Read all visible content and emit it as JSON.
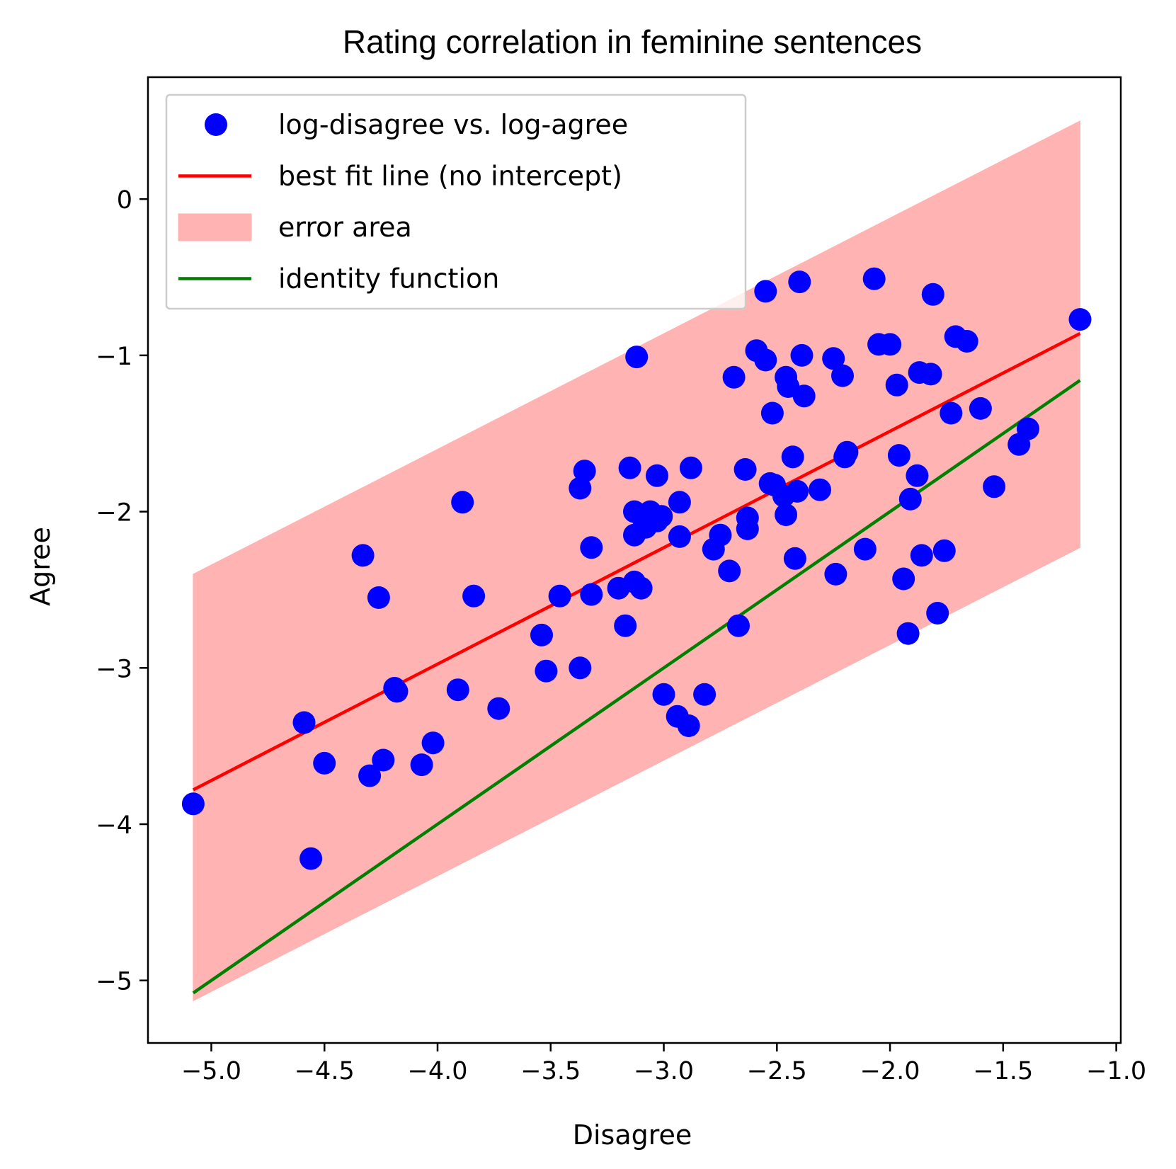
{
  "chart_data": {
    "type": "scatter",
    "title": "Rating correlation in feminine sentences",
    "xlabel": "Disagree",
    "ylabel": "Agree",
    "xlim": [
      -5.28,
      -0.98
    ],
    "ylim": [
      -5.4,
      0.78
    ],
    "xticks": [
      -5.0,
      -4.5,
      -4.0,
      -3.5,
      -3.0,
      -2.5,
      -2.0,
      -1.5,
      -1.0
    ],
    "xtick_labels": [
      "−5.0",
      "−4.5",
      "−4.0",
      "−3.5",
      "−3.0",
      "−2.5",
      "−2.0",
      "−1.5",
      "−1.0"
    ],
    "yticks": [
      0,
      -1,
      -2,
      -3,
      -4,
      -5
    ],
    "ytick_labels": [
      "0",
      "−1",
      "−2",
      "−3",
      "−4",
      "−5"
    ],
    "legend": {
      "location": "upper-left",
      "entries": [
        {
          "label": "log-disagree vs. log-agree",
          "kind": "marker",
          "color": "#0000ff"
        },
        {
          "label": "best fit line (no intercept)",
          "kind": "line",
          "color": "#ff0000"
        },
        {
          "label": "error area",
          "kind": "patch",
          "color": "#ffb3b3"
        },
        {
          "label": "identity function",
          "kind": "line",
          "color": "#008000"
        }
      ]
    },
    "series": [
      {
        "name": "log-disagree vs. log-agree",
        "kind": "scatter",
        "color": "#0000ff",
        "points": [
          [
            -5.08,
            -3.87
          ],
          [
            -4.59,
            -3.35
          ],
          [
            -4.56,
            -4.22
          ],
          [
            -4.5,
            -3.61
          ],
          [
            -4.33,
            -2.28
          ],
          [
            -4.3,
            -3.69
          ],
          [
            -4.26,
            -2.55
          ],
          [
            -4.24,
            -3.59
          ],
          [
            -4.19,
            -3.13
          ],
          [
            -4.18,
            -3.15
          ],
          [
            -4.07,
            -3.62
          ],
          [
            -4.02,
            -3.48
          ],
          [
            -3.91,
            -3.14
          ],
          [
            -3.89,
            -1.94
          ],
          [
            -3.84,
            -2.54
          ],
          [
            -3.73,
            -3.26
          ],
          [
            -3.54,
            -2.79
          ],
          [
            -3.52,
            -3.02
          ],
          [
            -3.46,
            -2.54
          ],
          [
            -3.37,
            -3.0
          ],
          [
            -3.37,
            -1.85
          ],
          [
            -3.35,
            -1.74
          ],
          [
            -3.32,
            -2.23
          ],
          [
            -3.32,
            -2.53
          ],
          [
            -3.2,
            -2.49
          ],
          [
            -3.17,
            -2.73
          ],
          [
            -3.15,
            -1.72
          ],
          [
            -3.13,
            -2.45
          ],
          [
            -3.13,
            -2.0
          ],
          [
            -3.13,
            -2.15
          ],
          [
            -3.12,
            -1.01
          ],
          [
            -3.1,
            -2.49
          ],
          [
            -3.09,
            -2.05
          ],
          [
            -3.08,
            -2.1
          ],
          [
            -3.06,
            -2.0
          ],
          [
            -3.03,
            -2.06
          ],
          [
            -3.03,
            -1.77
          ],
          [
            -3.01,
            -2.03
          ],
          [
            -3.0,
            -3.17
          ],
          [
            -2.94,
            -3.31
          ],
          [
            -2.93,
            -2.16
          ],
          [
            -2.93,
            -1.94
          ],
          [
            -2.89,
            -3.37
          ],
          [
            -2.88,
            -1.72
          ],
          [
            -2.82,
            -3.17
          ],
          [
            -2.78,
            -2.24
          ],
          [
            -2.75,
            -2.15
          ],
          [
            -2.71,
            -2.38
          ],
          [
            -2.69,
            -1.14
          ],
          [
            -2.67,
            -2.73
          ],
          [
            -2.64,
            -1.73
          ],
          [
            -2.63,
            -2.04
          ],
          [
            -2.63,
            -2.11
          ],
          [
            -2.59,
            -0.97
          ],
          [
            -2.55,
            -1.03
          ],
          [
            -2.55,
            -0.59
          ],
          [
            -2.53,
            -1.82
          ],
          [
            -2.52,
            -1.37
          ],
          [
            -2.51,
            -1.83
          ],
          [
            -2.47,
            -1.9
          ],
          [
            -2.46,
            -2.02
          ],
          [
            -2.46,
            -1.14
          ],
          [
            -2.45,
            -1.2
          ],
          [
            -2.43,
            -1.65
          ],
          [
            -2.42,
            -2.3
          ],
          [
            -2.41,
            -1.87
          ],
          [
            -2.4,
            -0.53
          ],
          [
            -2.39,
            -1.0
          ],
          [
            -2.38,
            -1.26
          ],
          [
            -2.31,
            -1.86
          ],
          [
            -2.25,
            -1.02
          ],
          [
            -2.24,
            -2.4
          ],
          [
            -2.21,
            -1.13
          ],
          [
            -2.2,
            -1.65
          ],
          [
            -2.19,
            -1.62
          ],
          [
            -2.11,
            -2.24
          ],
          [
            -2.07,
            -0.51
          ],
          [
            -2.05,
            -0.93
          ],
          [
            -2.0,
            -0.93
          ],
          [
            -1.97,
            -1.19
          ],
          [
            -1.96,
            -1.64
          ],
          [
            -1.94,
            -2.43
          ],
          [
            -1.92,
            -2.78
          ],
          [
            -1.91,
            -1.92
          ],
          [
            -1.88,
            -1.77
          ],
          [
            -1.87,
            -1.11
          ],
          [
            -1.86,
            -2.28
          ],
          [
            -1.82,
            -1.12
          ],
          [
            -1.81,
            -0.61
          ],
          [
            -1.79,
            -2.65
          ],
          [
            -1.76,
            -2.25
          ],
          [
            -1.73,
            -1.37
          ],
          [
            -1.71,
            -0.88
          ],
          [
            -1.66,
            -0.91
          ],
          [
            -1.6,
            -1.34
          ],
          [
            -1.54,
            -1.84
          ],
          [
            -1.43,
            -1.57
          ],
          [
            -1.39,
            -1.47
          ],
          [
            -1.16,
            -0.77
          ]
        ]
      },
      {
        "name": "best fit line (no intercept)",
        "kind": "line",
        "color": "#ff0000",
        "x": [
          -5.08,
          -1.16
        ],
        "y": [
          -3.78,
          -0.86
        ]
      },
      {
        "name": "error area",
        "kind": "band",
        "color": "#ffb3b3",
        "x": [
          -5.08,
          -1.16
        ],
        "upper": [
          -2.4,
          0.5
        ],
        "lower": [
          -5.13,
          -2.23
        ]
      },
      {
        "name": "identity function",
        "kind": "line",
        "color": "#008000",
        "x": [
          -5.08,
          -1.16
        ],
        "y": [
          -5.08,
          -1.16
        ]
      }
    ]
  }
}
